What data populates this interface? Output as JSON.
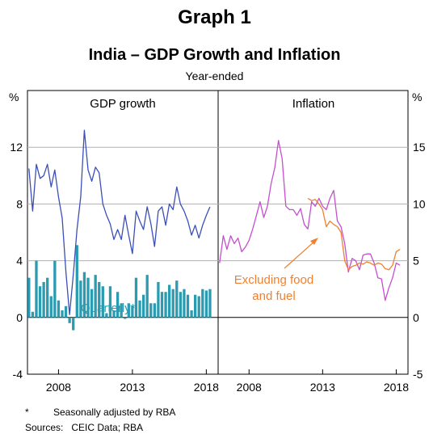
{
  "header": {
    "graph_label": "Graph 1",
    "title": "India – GDP Growth and Inflation",
    "subtitle": "Year-ended"
  },
  "footer": {
    "note_marker": "*",
    "note_text": "Seasonally adjusted by RBA",
    "sources": "Sources:   CEIC Data; RBA"
  },
  "colors": {
    "gdp_line": "#3a4fb8",
    "quarterly_bars": "#2a9bb0",
    "inflation_line": "#c44fd0",
    "excl_food_fuel": "#f08030",
    "grid": "#b0b0b0"
  },
  "chart_data": [
    {
      "type": "line",
      "title": "GDP growth",
      "ylabel": "%",
      "ylim": [
        -4,
        16
      ],
      "yticks": [
        -4,
        0,
        4,
        8,
        12
      ],
      "xticks": [
        2008,
        2013,
        2018
      ],
      "xlim": [
        2005.9,
        2018.8
      ],
      "grid": true,
      "series": [
        {
          "name": "GDP growth",
          "x": [
            2006.0,
            2006.25,
            2006.5,
            2006.75,
            2007.0,
            2007.25,
            2007.5,
            2007.75,
            2008.0,
            2008.25,
            2008.5,
            2008.75,
            2009.0,
            2009.25,
            2009.5,
            2009.75,
            2010.0,
            2010.25,
            2010.5,
            2010.75,
            2011.0,
            2011.25,
            2011.5,
            2011.75,
            2012.0,
            2012.25,
            2012.5,
            2012.75,
            2013.0,
            2013.25,
            2013.5,
            2013.75,
            2014.0,
            2014.25,
            2014.5,
            2014.75,
            2015.0,
            2015.25,
            2015.5,
            2015.75,
            2016.0,
            2016.25,
            2016.5,
            2016.75,
            2017.0,
            2017.25,
            2017.5,
            2017.75,
            2018.0,
            2018.25
          ],
          "values": [
            10.5,
            7.5,
            10.8,
            9.8,
            10.0,
            10.8,
            9.2,
            10.4,
            8.5,
            7.0,
            3.2,
            0.2,
            3.0,
            6.2,
            8.5,
            13.2,
            10.4,
            9.6,
            10.6,
            10.2,
            8.0,
            7.2,
            6.6,
            5.5,
            6.2,
            5.5,
            7.2,
            5.8,
            4.5,
            7.5,
            6.8,
            6.2,
            7.8,
            6.6,
            5.0,
            7.5,
            7.8,
            6.5,
            8.0,
            7.6,
            9.2,
            8.0,
            7.5,
            6.8,
            5.8,
            6.5,
            5.6,
            6.5,
            7.2,
            7.8
          ]
        },
        {
          "name": "Quarterly",
          "type": "bar",
          "x": [
            2006.0,
            2006.25,
            2006.5,
            2006.75,
            2007.0,
            2007.25,
            2007.5,
            2007.75,
            2008.0,
            2008.25,
            2008.5,
            2008.75,
            2009.0,
            2009.25,
            2009.5,
            2009.75,
            2010.0,
            2010.25,
            2010.5,
            2010.75,
            2011.0,
            2011.25,
            2011.5,
            2011.75,
            2012.0,
            2012.25,
            2012.5,
            2012.75,
            2013.0,
            2013.25,
            2013.5,
            2013.75,
            2014.0,
            2014.25,
            2014.5,
            2014.75,
            2015.0,
            2015.25,
            2015.5,
            2015.75,
            2016.0,
            2016.25,
            2016.5,
            2016.75,
            2017.0,
            2017.25,
            2017.5,
            2017.75,
            2018.0,
            2018.25
          ],
          "values": [
            2.8,
            0.4,
            4.0,
            2.2,
            2.5,
            2.8,
            1.5,
            4.0,
            1.2,
            0.5,
            0.8,
            -0.4,
            -0.9,
            5.1,
            2.6,
            3.2,
            2.8,
            2.0,
            3.0,
            2.5,
            2.2,
            0.3,
            2.2,
            0.5,
            1.8,
            1.0,
            -0.1,
            1.0,
            0.8,
            2.8,
            1.2,
            1.6,
            3.0,
            1.0,
            1.0,
            2.5,
            1.8,
            1.8,
            2.3,
            2.0,
            2.6,
            1.8,
            2.0,
            1.6,
            0.5,
            1.6,
            1.5,
            2.0,
            1.9,
            2.0
          ]
        }
      ],
      "annotations": [
        "Quarterly*"
      ]
    },
    {
      "type": "line",
      "title": "Inflation",
      "ylabel": "%",
      "ylim": [
        -5,
        20
      ],
      "yticks": [
        -5,
        0,
        5,
        10,
        15
      ],
      "xticks": [
        2008,
        2013,
        2018
      ],
      "xlim": [
        2005.9,
        2018.8
      ],
      "grid": true,
      "series": [
        {
          "name": "Inflation",
          "x": [
            2006.0,
            2006.25,
            2006.5,
            2006.75,
            2007.0,
            2007.25,
            2007.5,
            2007.75,
            2008.0,
            2008.25,
            2008.5,
            2008.75,
            2009.0,
            2009.25,
            2009.5,
            2009.75,
            2010.0,
            2010.25,
            2010.5,
            2010.75,
            2011.0,
            2011.25,
            2011.5,
            2011.75,
            2012.0,
            2012.25,
            2012.5,
            2012.75,
            2013.0,
            2013.25,
            2013.5,
            2013.75,
            2014.0,
            2014.25,
            2014.5,
            2014.75,
            2015.0,
            2015.25,
            2015.5,
            2015.75,
            2016.0,
            2016.25,
            2016.5,
            2016.75,
            2017.0,
            2017.25,
            2017.5,
            2017.75,
            2018.0,
            2018.25
          ],
          "values": [
            4.8,
            7.2,
            6.0,
            7.2,
            6.5,
            7.0,
            5.8,
            6.2,
            6.8,
            7.8,
            9.0,
            10.2,
            8.8,
            9.8,
            11.8,
            13.2,
            15.6,
            14.0,
            9.8,
            9.5,
            9.5,
            9.0,
            9.6,
            8.2,
            7.8,
            10.2,
            9.8,
            10.5,
            9.8,
            9.5,
            10.5,
            11.2,
            8.5,
            8.0,
            6.5,
            4.0,
            5.2,
            5.0,
            4.2,
            5.5,
            5.6,
            5.6,
            4.8,
            3.5,
            3.4,
            1.5,
            2.6,
            3.5,
            4.8,
            4.6
          ]
        },
        {
          "name": "Excluding food and fuel",
          "x": [
            2012.0,
            2012.25,
            2012.5,
            2012.75,
            2013.0,
            2013.25,
            2013.5,
            2013.75,
            2014.0,
            2014.25,
            2014.5,
            2014.75,
            2015.0,
            2015.25,
            2015.5,
            2015.75,
            2016.0,
            2016.25,
            2016.5,
            2016.75,
            2017.0,
            2017.25,
            2017.5,
            2017.75,
            2018.0,
            2018.25
          ],
          "values": [
            10.5,
            10.3,
            10.4,
            10.0,
            9.5,
            8.0,
            8.5,
            8.2,
            8.0,
            7.5,
            5.0,
            4.2,
            4.5,
            4.6,
            4.8,
            4.7,
            4.9,
            4.8,
            4.6,
            4.8,
            4.7,
            4.3,
            4.2,
            4.6,
            5.8,
            6.0
          ]
        }
      ],
      "annotations": [
        "Excluding food",
        "and fuel"
      ]
    }
  ]
}
